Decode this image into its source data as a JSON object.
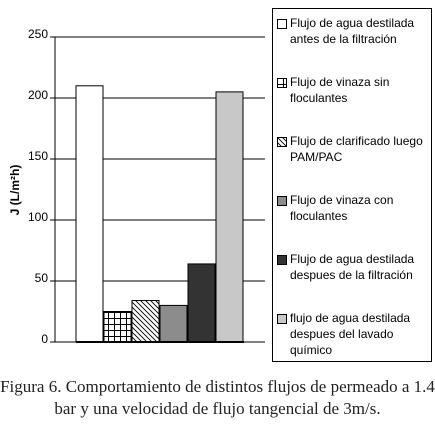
{
  "chart_data": {
    "type": "bar",
    "y_label": "J (L/m²h)",
    "caption": "Figura 6. Comportamiento de distintos flujos de permeado a 1.4 bar y una velocidad de flujo tangencial de 3m/s.",
    "categories": [
      null
    ],
    "series": [
      {
        "name": "Flujo de agua destilada antes de la filtración",
        "color": "#ffffff",
        "hatch": "none",
        "values": [
          210
        ]
      },
      {
        "name": "Flujo de vinaza sin floculantes",
        "color": "#ffffff",
        "hatch": "grid",
        "values": [
          25
        ]
      },
      {
        "name": "Flujo de clarificado luego PAM/PAC",
        "color": "#ffffff",
        "hatch": "diagonal",
        "values": [
          34
        ]
      },
      {
        "name": "Flujo de vinaza con floculantes",
        "color": "#8c8c8c",
        "hatch": "none",
        "values": [
          30
        ]
      },
      {
        "name": "Flujo de agua destilada despues de la filtración",
        "color": "#333333",
        "hatch": "none",
        "values": [
          64
        ]
      },
      {
        "name": "flujo de agua destilada despues del lavado químico",
        "color": "#c8c8c8",
        "hatch": "none",
        "values": [
          205
        ]
      }
    ],
    "ylim": [
      0,
      250
    ],
    "yticks": [
      0,
      50,
      100,
      150,
      200,
      250
    ],
    "grid": true
  }
}
